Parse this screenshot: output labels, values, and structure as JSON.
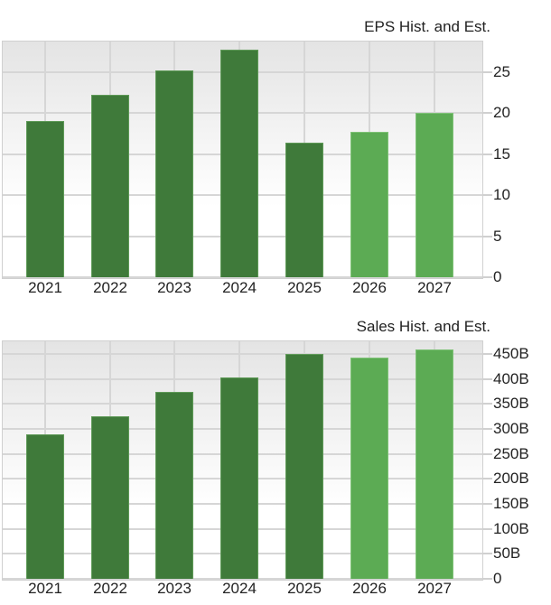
{
  "chart_data": [
    {
      "type": "bar",
      "title": "EPS Hist. and Est.",
      "xlabel": "",
      "ylabel": "",
      "categories": [
        "2021",
        "2022",
        "2023",
        "2024",
        "2025",
        "2026",
        "2027"
      ],
      "values": [
        19.0,
        22.2,
        25.2,
        27.7,
        16.4,
        17.7,
        20.0
      ],
      "bar_kind": [
        "historical",
        "historical",
        "historical",
        "historical",
        "historical",
        "estimate",
        "estimate"
      ],
      "yticks": [
        "0",
        "5",
        "10",
        "15",
        "20",
        "25"
      ],
      "ylim": [
        0,
        28.5
      ],
      "y_axis_position": "right",
      "grid": true,
      "legend": null
    },
    {
      "type": "bar",
      "title": "Sales Hist. and Est.",
      "xlabel": "",
      "ylabel": "",
      "categories": [
        "2021",
        "2022",
        "2023",
        "2024",
        "2025",
        "2026",
        "2027"
      ],
      "values": [
        289,
        325,
        374,
        403,
        450,
        443,
        459
      ],
      "unit": "B",
      "bar_kind": [
        "historical",
        "historical",
        "historical",
        "historical",
        "historical",
        "estimate",
        "estimate"
      ],
      "yticks": [
        "0",
        "50B",
        "100B",
        "150B",
        "200B",
        "250B",
        "300B",
        "350B",
        "400B",
        "450B"
      ],
      "ylim": [
        0,
        475
      ],
      "y_axis_position": "right",
      "grid": true,
      "legend": null
    }
  ],
  "colors": {
    "historical": "#3f7a3a",
    "estimate": "#5cab54",
    "grid": "#d6d6d6"
  },
  "eps": {
    "title": "EPS Hist. and Est.",
    "years": [
      "2021",
      "2022",
      "2023",
      "2024",
      "2025",
      "2026",
      "2027"
    ],
    "ticks": [
      "0",
      "5",
      "10",
      "15",
      "20",
      "25"
    ]
  },
  "sales": {
    "title": "Sales Hist. and Est.",
    "years": [
      "2021",
      "2022",
      "2023",
      "2024",
      "2025",
      "2026",
      "2027"
    ],
    "ticks": [
      "0",
      "50B",
      "100B",
      "150B",
      "200B",
      "250B",
      "300B",
      "350B",
      "400B",
      "450B"
    ]
  }
}
